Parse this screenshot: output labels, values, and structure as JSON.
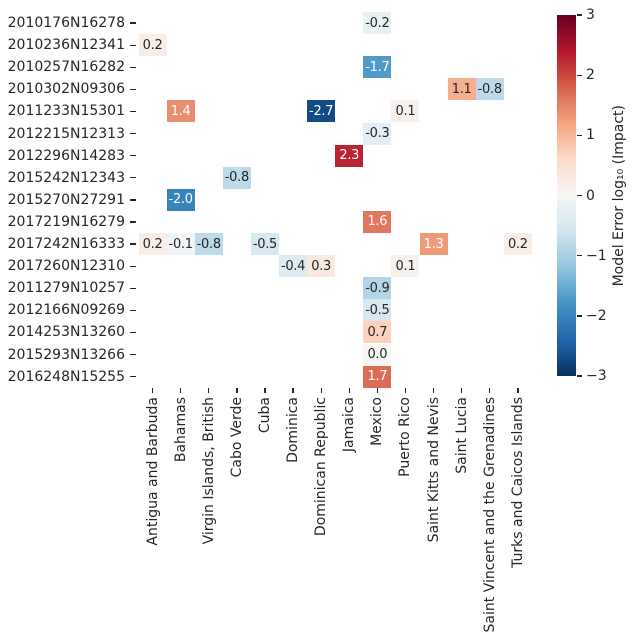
{
  "chart_data": {
    "type": "heatmap",
    "title": "",
    "xlabel": "",
    "ylabel": "",
    "grid": false,
    "x_tick_rotation": 90,
    "rows": [
      "2010176N16278",
      "2010236N12341",
      "2010257N16282",
      "2010302N09306",
      "2011233N15301",
      "2012215N12313",
      "2012296N14283",
      "2015242N12343",
      "2015270N27291",
      "2017219N16279",
      "2017242N16333",
      "2017260N12310",
      "2011279N10257",
      "2012166N09269",
      "2014253N13260",
      "2015293N13266",
      "2016248N15255"
    ],
    "columns": [
      "Antigua and Barbuda",
      "Bahamas",
      "Virgin Islands, British",
      "Cabo Verde",
      "Cuba",
      "Dominica",
      "Dominican Republic",
      "Jamaica",
      "Mexico",
      "Puerto Rico",
      "Saint Kitts and Nevis",
      "Saint Lucia",
      "Saint Vincent and the Grenadines",
      "Turks and Caicos Islands"
    ],
    "cells": [
      {
        "row": 0,
        "col": 8,
        "value": -0.2,
        "text": "-0.2",
        "bg": "#eaf1f5",
        "fg": "#262626"
      },
      {
        "row": 1,
        "col": 0,
        "value": 0.2,
        "text": "0.2",
        "bg": "#f9eee7",
        "fg": "#262626"
      },
      {
        "row": 2,
        "col": 8,
        "value": -1.7,
        "text": "-1.7",
        "bg": "#509bc8",
        "fg": "#ffffff"
      },
      {
        "row": 3,
        "col": 11,
        "value": 1.1,
        "text": "1.1",
        "bg": "#f5ae8e",
        "fg": "#262626"
      },
      {
        "row": 3,
        "col": 12,
        "value": -0.8,
        "text": "-0.8",
        "bg": "#bcdaea",
        "fg": "#262626"
      },
      {
        "row": 4,
        "col": 1,
        "value": 1.4,
        "text": "1.4",
        "bg": "#ea8e70",
        "fg": "#ffffff"
      },
      {
        "row": 4,
        "col": 6,
        "value": -2.7,
        "text": "-2.7",
        "bg": "#134b86",
        "fg": "#ffffff"
      },
      {
        "row": 4,
        "col": 9,
        "value": 0.1,
        "text": "0.1",
        "bg": "#f8f2ef",
        "fg": "#262626"
      },
      {
        "row": 5,
        "col": 8,
        "value": -0.3,
        "text": "-0.3",
        "bg": "#e4eef4",
        "fg": "#262626"
      },
      {
        "row": 6,
        "col": 7,
        "value": 2.3,
        "text": "2.3",
        "bg": "#b82431",
        "fg": "#ffffff"
      },
      {
        "row": 7,
        "col": 3,
        "value": -0.8,
        "text": "-0.8",
        "bg": "#bcdaea",
        "fg": "#262626"
      },
      {
        "row": 8,
        "col": 1,
        "value": -2.0,
        "text": "-2.0",
        "bg": "#3884bb",
        "fg": "#ffffff"
      },
      {
        "row": 9,
        "col": 8,
        "value": 1.6,
        "text": "1.6",
        "bg": "#e0775f",
        "fg": "#ffffff"
      },
      {
        "row": 10,
        "col": 0,
        "value": 0.2,
        "text": "0.2",
        "bg": "#f9eee7",
        "fg": "#262626"
      },
      {
        "row": 10,
        "col": 1,
        "value": -0.1,
        "text": "-0.1",
        "bg": "#f1f4f6",
        "fg": "#262626"
      },
      {
        "row": 10,
        "col": 2,
        "value": -0.8,
        "text": "-0.8",
        "bg": "#bcdaea",
        "fg": "#262626"
      },
      {
        "row": 10,
        "col": 4,
        "value": -0.5,
        "text": "-0.5",
        "bg": "#d7e8f1",
        "fg": "#262626"
      },
      {
        "row": 10,
        "col": 10,
        "value": 1.3,
        "text": "1.3",
        "bg": "#ef9a79",
        "fg": "#ffffff"
      },
      {
        "row": 10,
        "col": 13,
        "value": 0.2,
        "text": "0.2",
        "bg": "#f9eee7",
        "fg": "#262626"
      },
      {
        "row": 11,
        "col": 5,
        "value": -0.4,
        "text": "-0.4",
        "bg": "#deebf2",
        "fg": "#262626"
      },
      {
        "row": 11,
        "col": 6,
        "value": 0.3,
        "text": "0.3",
        "bg": "#fae9df",
        "fg": "#262626"
      },
      {
        "row": 11,
        "col": 9,
        "value": 0.1,
        "text": "0.1",
        "bg": "#f8f2ef",
        "fg": "#262626"
      },
      {
        "row": 12,
        "col": 8,
        "value": -0.9,
        "text": "-0.9",
        "bg": "#b2d5e7",
        "fg": "#262626"
      },
      {
        "row": 13,
        "col": 8,
        "value": -0.5,
        "text": "-0.5",
        "bg": "#d7e8f1",
        "fg": "#262626"
      },
      {
        "row": 14,
        "col": 8,
        "value": 0.7,
        "text": "0.7",
        "bg": "#fcd2bc",
        "fg": "#262626"
      },
      {
        "row": 15,
        "col": 8,
        "value": 0.0,
        "text": "0.0",
        "bg": "#f7f7f7",
        "fg": "#262626"
      },
      {
        "row": 16,
        "col": 8,
        "value": 1.7,
        "text": "1.7",
        "bg": "#db6c56",
        "fg": "#ffffff"
      }
    ],
    "colorbar": {
      "label": "Model Error log₁₀ (Impact)",
      "min": -3,
      "max": 3,
      "tick_values": [
        3,
        2,
        1,
        0,
        -1,
        -2,
        -3
      ],
      "tick_labels": [
        "3",
        "2",
        "1",
        "0",
        "−1",
        "−2",
        "−3"
      ],
      "colormap": "RdBu_r",
      "gradient_stops_bottom_to_top": [
        "#053061",
        "#2166ac",
        "#4393c3",
        "#92c5de",
        "#d1e5f0",
        "#f7f7f7",
        "#fddbc7",
        "#f4a582",
        "#d6604d",
        "#b2182b",
        "#67001f"
      ]
    },
    "empty_cell_color": "#ffffff"
  },
  "colors": {
    "background": "#ffffff",
    "axis_text": "#262626",
    "tick_mark": "#262626"
  }
}
